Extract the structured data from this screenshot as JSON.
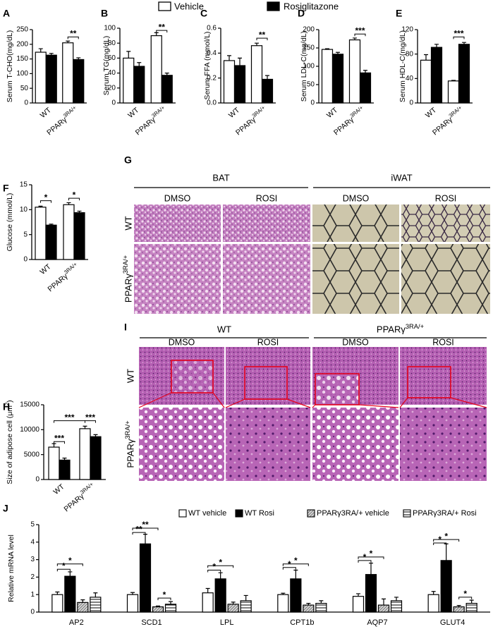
{
  "legend": [
    {
      "name": "Vehicle",
      "color": "#ffffff"
    },
    {
      "name": "Rosiglitazone",
      "color": "#000000"
    }
  ],
  "chart_data": [
    {
      "type": "bar",
      "panel": "A",
      "y_label": "Serum T-CHO(mg/dL)",
      "categories": [
        "WT",
        "PPARγ3RA/+"
      ],
      "series": [
        {
          "color": "#ffffff",
          "values": [
            173,
            205
          ],
          "errors": [
            12,
            6
          ]
        },
        {
          "color": "#000000",
          "values": [
            163,
            148
          ],
          "errors": [
            6,
            6
          ]
        }
      ],
      "ylim": [
        0,
        250
      ],
      "yticks": [
        0,
        50,
        100,
        150,
        200,
        250
      ],
      "annotations": [
        {
          "label": "**",
          "y": 225,
          "from": [
            0,
            1
          ],
          "to": [
            1,
            1
          ]
        }
      ]
    },
    {
      "type": "bar",
      "panel": "B",
      "y_label": "Serum TG(mg/dL)",
      "categories": [
        "WT",
        "PPARγ3RA/+"
      ],
      "series": [
        {
          "color": "#ffffff",
          "values": [
            60,
            90
          ],
          "errors": [
            9,
            4
          ]
        },
        {
          "color": "#000000",
          "values": [
            49,
            37
          ],
          "errors": [
            5,
            3
          ]
        }
      ],
      "ylim": [
        0,
        100
      ],
      "yticks": [
        0,
        20,
        40,
        60,
        80,
        100
      ],
      "annotations": [
        {
          "label": "**",
          "y": 97,
          "from": [
            0,
            1
          ],
          "to": [
            1,
            1
          ]
        }
      ]
    },
    {
      "type": "bar",
      "panel": "C",
      "y_label": "Serum FFA (mmol/L)",
      "categories": [
        "WT",
        "PPARγ3RA/+"
      ],
      "series": [
        {
          "color": "#ffffff",
          "values": [
            0.34,
            0.46
          ],
          "errors": [
            0.04,
            0.02
          ]
        },
        {
          "color": "#000000",
          "values": [
            0.3,
            0.19
          ],
          "errors": [
            0.06,
            0.03
          ]
        }
      ],
      "ylim": [
        0,
        0.6
      ],
      "yticks": [
        {
          "value": 0,
          "label": "0.0"
        },
        0.2,
        0.4,
        0.6
      ],
      "annotations": [
        {
          "label": "**",
          "y": 0.52,
          "from": [
            0,
            1
          ],
          "to": [
            1,
            1
          ]
        }
      ]
    },
    {
      "type": "bar",
      "panel": "D",
      "y_label": "Serum LDL-C(mg/dL)",
      "categories": [
        "WT",
        "PPARγ3RA/+"
      ],
      "series": [
        {
          "color": "#ffffff",
          "values": [
            146,
            172
          ],
          "errors": [
            2,
            5
          ]
        },
        {
          "color": "#000000",
          "values": [
            133,
            82
          ],
          "errors": [
            5,
            7
          ]
        }
      ],
      "ylim": [
        0,
        200
      ],
      "yticks": [
        0,
        50,
        100,
        150,
        200
      ],
      "annotations": [
        {
          "label": "***",
          "y": 188,
          "from": [
            0,
            1
          ],
          "to": [
            1,
            1
          ]
        }
      ]
    },
    {
      "type": "bar",
      "panel": "E",
      "y_label": "Serum HDL-C(mg/dL)",
      "categories": [
        "WT",
        "PPARγ3RA/+"
      ],
      "series": [
        {
          "color": "#ffffff",
          "values": [
            70,
            36
          ],
          "errors": [
            9,
            1
          ]
        },
        {
          "color": "#000000",
          "values": [
            91,
            96
          ],
          "errors": [
            5,
            3
          ]
        }
      ],
      "ylim": [
        0,
        120
      ],
      "yticks": [
        0,
        40,
        80,
        120
      ],
      "annotations": [
        {
          "label": "***",
          "y": 108,
          "from": [
            0,
            1
          ],
          "to": [
            1,
            1
          ]
        }
      ]
    },
    {
      "type": "bar",
      "panel": "F",
      "y_label": "Glucose (mmol/L)",
      "categories": [
        "WT",
        "PPARγ3RA/+"
      ],
      "series": [
        {
          "color": "#ffffff",
          "values": [
            10.5,
            11
          ],
          "errors": [
            0.2,
            0.4
          ]
        },
        {
          "color": "#000000",
          "values": [
            6.9,
            9.4
          ],
          "errors": [
            0.2,
            0.3
          ]
        }
      ],
      "ylim": [
        0,
        15
      ],
      "yticks": [
        0,
        5,
        10,
        15
      ],
      "annotations": [
        {
          "label": "*",
          "y": 11.8,
          "from": [
            0,
            0
          ],
          "to": [
            1,
            0
          ]
        },
        {
          "label": "*",
          "y": 12.3,
          "from": [
            0,
            1
          ],
          "to": [
            1,
            1
          ]
        }
      ]
    },
    {
      "type": "bar",
      "panel": "H",
      "y_label": "Size of adipose cell (μm2)",
      "categories": [
        "WT",
        "PPARγ3RA/+"
      ],
      "series": [
        {
          "color": "#ffffff",
          "values": [
            6500,
            10200
          ],
          "errors": [
            700,
            500
          ]
        },
        {
          "color": "#000000",
          "values": [
            3900,
            8600
          ],
          "errors": [
            400,
            400
          ]
        }
      ],
      "ylim": [
        0,
        15000
      ],
      "yticks": [
        0,
        5000,
        10000,
        15000
      ],
      "annotations": [
        {
          "label": "***",
          "y": 7600,
          "from": [
            0,
            0
          ],
          "to": [
            1,
            0
          ]
        },
        {
          "label": "***",
          "y": 11800,
          "from": [
            0,
            0
          ],
          "to": [
            0,
            1
          ]
        },
        {
          "label": "***",
          "y": 11800,
          "from": [
            0,
            1
          ],
          "to": [
            1,
            1
          ]
        }
      ]
    },
    {
      "type": "bar",
      "panel": "J",
      "y_label": "Relative mRNA level",
      "categories": [
        "AP2",
        "SCD1",
        "LPL",
        "CPT1b",
        "AQP7",
        "GLUT4"
      ],
      "series": [
        {
          "name": "WT vehicle",
          "color": "#ffffff",
          "values": [
            1.0,
            1.0,
            1.1,
            1.0,
            0.9,
            1.0
          ],
          "errors": [
            0.15,
            0.12,
            0.25,
            0.08,
            0.15,
            0.18
          ]
        },
        {
          "name": "WT Rosi",
          "color": "#000000",
          "values": [
            2.05,
            3.9,
            1.9,
            1.9,
            2.15,
            2.95
          ],
          "errors": [
            0.25,
            0.55,
            0.35,
            0.5,
            0.65,
            0.95
          ]
        },
        {
          "name": "PPARγ3RA/+ vehicle",
          "color": "#d9d9d9",
          "pattern": "diagonal",
          "values": [
            0.55,
            0.3,
            0.45,
            0.4,
            0.4,
            0.3
          ],
          "errors": [
            0.15,
            0.05,
            0.12,
            0.1,
            0.35,
            0.08
          ]
        },
        {
          "name": "PPARγ3RA/+ Rosi",
          "color": "#ffffff",
          "pattern": "horizontal",
          "values": [
            0.85,
            0.45,
            0.65,
            0.5,
            0.65,
            0.5
          ],
          "errors": [
            0.25,
            0.15,
            0.3,
            0.15,
            0.2,
            0.18
          ]
        }
      ],
      "ylim": [
        0,
        5
      ],
      "yticks": [
        0,
        1,
        2,
        3,
        4,
        5
      ],
      "annotations": [
        {
          "label": "*",
          "y": 2.45,
          "from": [
            0,
            0
          ],
          "to": [
            1,
            0
          ]
        },
        {
          "label": "*",
          "y": 2.75,
          "from": [
            0,
            0
          ],
          "to": [
            2,
            0
          ]
        },
        {
          "label": "**",
          "y": 4.55,
          "from": [
            0,
            1
          ],
          "to": [
            1,
            1
          ]
        },
        {
          "label": "**",
          "y": 4.8,
          "from": [
            0,
            1
          ],
          "to": [
            2,
            1
          ]
        },
        {
          "label": "*",
          "y": 0.8,
          "from": [
            2,
            1
          ],
          "to": [
            3,
            1
          ]
        },
        {
          "label": "*",
          "y": 2.4,
          "from": [
            0,
            2
          ],
          "to": [
            1,
            2
          ]
        },
        {
          "label": "*",
          "y": 2.65,
          "from": [
            0,
            2
          ],
          "to": [
            2,
            2
          ]
        },
        {
          "label": "*",
          "y": 2.55,
          "from": [
            0,
            3
          ],
          "to": [
            1,
            3
          ]
        },
        {
          "label": "*",
          "y": 2.75,
          "from": [
            0,
            3
          ],
          "to": [
            2,
            3
          ]
        },
        {
          "label": "*",
          "y": 2.95,
          "from": [
            0,
            4
          ],
          "to": [
            1,
            4
          ]
        },
        {
          "label": "*",
          "y": 3.15,
          "from": [
            0,
            4
          ],
          "to": [
            2,
            4
          ]
        },
        {
          "label": "*",
          "y": 3.95,
          "from": [
            0,
            5
          ],
          "to": [
            1,
            5
          ]
        },
        {
          "label": "*",
          "y": 4.15,
          "from": [
            0,
            5
          ],
          "to": [
            2,
            5
          ]
        },
        {
          "label": "*",
          "y": 0.85,
          "from": [
            2,
            5
          ],
          "to": [
            3,
            5
          ]
        }
      ]
    }
  ],
  "histology_G": {
    "panel": "G",
    "groups": [
      "BAT",
      "iWAT"
    ],
    "columns": [
      "DMSO",
      "ROSI",
      "DMSO",
      "ROSI"
    ],
    "rows": [
      "WT",
      "PPARγ3RA/+"
    ]
  },
  "histology_I": {
    "panel": "I",
    "groups": [
      "WT",
      "PPARγ3RA/+"
    ],
    "columns": [
      "DMSO",
      "ROSI",
      "DMSO",
      "ROSI"
    ],
    "rows": [
      "WT",
      "PPARγ3RA/+"
    ]
  }
}
